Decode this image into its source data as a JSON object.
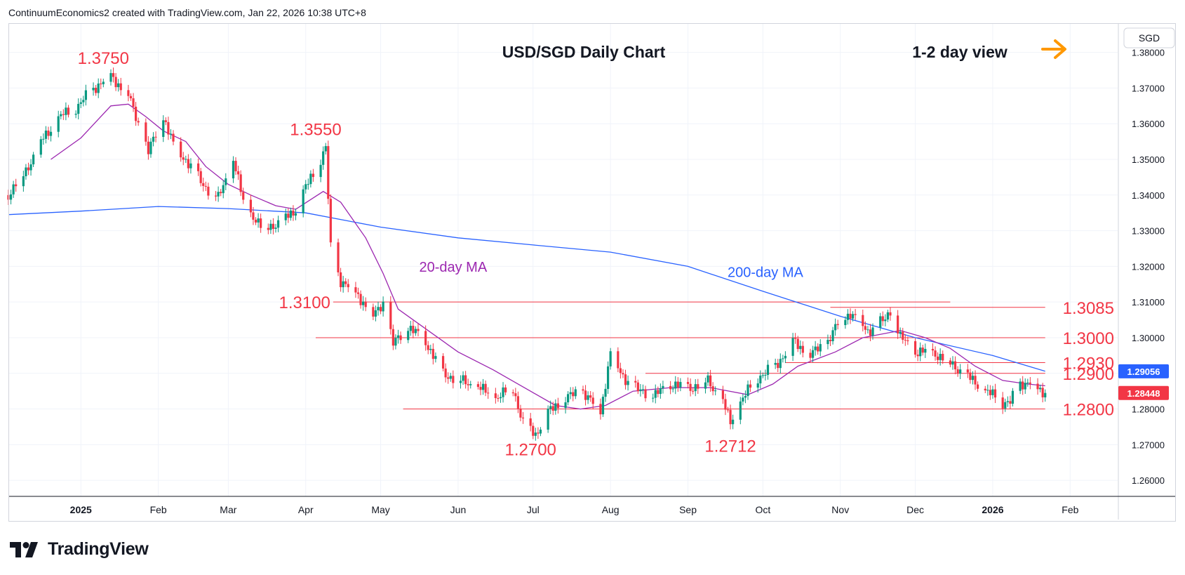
{
  "header": {
    "attribution": "ContinuumEconomics2 created with TradingView.com, Jan 22, 2026 10:38 UTC+8"
  },
  "footer": {
    "brand": "TradingView"
  },
  "colors": {
    "up": "#089981",
    "down": "#f23645",
    "ma20": "#9c27b0",
    "ma200": "#2962ff",
    "level_line": "#f23645",
    "annotation_red": "#f23645",
    "arrow": "#ff9800",
    "grid": "#f0f3fa",
    "last_price_bg": "#f23645",
    "ma200_label_bg": "#2962ff"
  },
  "chart_data": {
    "type": "candlestick",
    "title": "USD/SGD Daily Chart",
    "view_label": "1-2 day view",
    "view_arrow": "right-arrow-icon",
    "currency": "SGD",
    "ylim": [
      1.2555,
      1.388
    ],
    "y_ticks": [
      "1.38000",
      "1.37000",
      "1.36000",
      "1.35000",
      "1.34000",
      "1.33000",
      "1.32000",
      "1.31000",
      "1.30000",
      "1.29000",
      "1.28000",
      "1.27000",
      "1.26000"
    ],
    "x_range": [
      "2024-12-03",
      "2026-02-20"
    ],
    "x_ticks": [
      {
        "label": "2025",
        "date": "2025-01-01",
        "bold": true
      },
      {
        "label": "Feb",
        "date": "2025-02-01"
      },
      {
        "label": "Mar",
        "date": "2025-03-01"
      },
      {
        "label": "Apr",
        "date": "2025-04-01"
      },
      {
        "label": "May",
        "date": "2025-05-01"
      },
      {
        "label": "Jun",
        "date": "2025-06-01"
      },
      {
        "label": "Jul",
        "date": "2025-07-01"
      },
      {
        "label": "Aug",
        "date": "2025-08-01"
      },
      {
        "label": "Sep",
        "date": "2025-09-01"
      },
      {
        "label": "Oct",
        "date": "2025-10-01"
      },
      {
        "label": "Nov",
        "date": "2025-11-01"
      },
      {
        "label": "Dec",
        "date": "2025-12-01"
      },
      {
        "label": "2026",
        "date": "2026-01-01",
        "bold": true
      },
      {
        "label": "Feb",
        "date": "2026-02-01"
      }
    ],
    "price_path": [
      [
        "2024-12-03",
        1.34
      ],
      [
        "2024-12-10",
        1.347
      ],
      [
        "2024-12-17",
        1.356
      ],
      [
        "2024-12-24",
        1.362
      ],
      [
        "2024-12-31",
        1.365
      ],
      [
        "2025-01-06",
        1.37
      ],
      [
        "2025-01-13",
        1.3735
      ],
      [
        "2025-01-20",
        1.368
      ],
      [
        "2025-01-24",
        1.36
      ],
      [
        "2025-01-28",
        1.352
      ],
      [
        "2025-02-03",
        1.362
      ],
      [
        "2025-02-07",
        1.354
      ],
      [
        "2025-02-12",
        1.35
      ],
      [
        "2025-02-19",
        1.343
      ],
      [
        "2025-02-25",
        1.339
      ],
      [
        "2025-03-03",
        1.35
      ],
      [
        "2025-03-07",
        1.338
      ],
      [
        "2025-03-14",
        1.331
      ],
      [
        "2025-03-21",
        1.332
      ],
      [
        "2025-03-28",
        1.336
      ],
      [
        "2025-04-01",
        1.342
      ],
      [
        "2025-04-07",
        1.35
      ],
      [
        "2025-04-09",
        1.353
      ],
      [
        "2025-04-11",
        1.325
      ],
      [
        "2025-04-15",
        1.316
      ],
      [
        "2025-04-22",
        1.312
      ],
      [
        "2025-04-28",
        1.306
      ],
      [
        "2025-05-02",
        1.31
      ],
      [
        "2025-05-06",
        1.298
      ],
      [
        "2025-05-12",
        1.303
      ],
      [
        "2025-05-19",
        1.299
      ],
      [
        "2025-05-26",
        1.29
      ],
      [
        "2025-06-02",
        1.288
      ],
      [
        "2025-06-09",
        1.286
      ],
      [
        "2025-06-16",
        1.283
      ],
      [
        "2025-06-23",
        1.286
      ],
      [
        "2025-06-27",
        1.276
      ],
      [
        "2025-07-02",
        1.273
      ],
      [
        "2025-07-07",
        1.279
      ],
      [
        "2025-07-14",
        1.283
      ],
      [
        "2025-07-21",
        1.285
      ],
      [
        "2025-07-28",
        1.279
      ],
      [
        "2025-08-01",
        1.296
      ],
      [
        "2025-08-05",
        1.29
      ],
      [
        "2025-08-12",
        1.285
      ],
      [
        "2025-08-19",
        1.284
      ],
      [
        "2025-08-26",
        1.287
      ],
      [
        "2025-09-02",
        1.286
      ],
      [
        "2025-09-09",
        1.288
      ],
      [
        "2025-09-15",
        1.282
      ],
      [
        "2025-09-18",
        1.276
      ],
      [
        "2025-09-22",
        1.282
      ],
      [
        "2025-09-29",
        1.289
      ],
      [
        "2025-10-06",
        1.292
      ],
      [
        "2025-10-13",
        1.299
      ],
      [
        "2025-10-20",
        1.295
      ],
      [
        "2025-10-27",
        1.299
      ],
      [
        "2025-11-01",
        1.305
      ],
      [
        "2025-11-05",
        1.307
      ],
      [
        "2025-11-12",
        1.302
      ],
      [
        "2025-11-19",
        1.305
      ],
      [
        "2025-11-21",
        1.308
      ],
      [
        "2025-11-25",
        1.3
      ],
      [
        "2025-12-01",
        1.296
      ],
      [
        "2025-12-08",
        1.296
      ],
      [
        "2025-12-15",
        1.293
      ],
      [
        "2025-12-22",
        1.289
      ],
      [
        "2025-12-29",
        1.285
      ],
      [
        "2026-01-05",
        1.282
      ],
      [
        "2026-01-08",
        1.282
      ],
      [
        "2026-01-12",
        1.287
      ],
      [
        "2026-01-16",
        1.288
      ],
      [
        "2026-01-19",
        1.285
      ],
      [
        "2026-01-22",
        1.2845
      ]
    ],
    "ma20_path": [
      [
        "2024-12-20",
        1.35
      ],
      [
        "2025-01-01",
        1.356
      ],
      [
        "2025-01-13",
        1.365
      ],
      [
        "2025-01-20",
        1.3655
      ],
      [
        "2025-01-27",
        1.362
      ],
      [
        "2025-02-03",
        1.358
      ],
      [
        "2025-02-12",
        1.355
      ],
      [
        "2025-02-20",
        1.348
      ],
      [
        "2025-03-01",
        1.343
      ],
      [
        "2025-03-10",
        1.34
      ],
      [
        "2025-03-20",
        1.337
      ],
      [
        "2025-03-28",
        1.336
      ],
      [
        "2025-04-08",
        1.341
      ],
      [
        "2025-04-15",
        1.338
      ],
      [
        "2025-04-25",
        1.328
      ],
      [
        "2025-05-02",
        1.318
      ],
      [
        "2025-05-08",
        1.308
      ],
      [
        "2025-05-20",
        1.302
      ],
      [
        "2025-06-01",
        1.296
      ],
      [
        "2025-06-15",
        1.291
      ],
      [
        "2025-06-30",
        1.285
      ],
      [
        "2025-07-10",
        1.281
      ],
      [
        "2025-07-20",
        1.28
      ],
      [
        "2025-07-30",
        1.281
      ],
      [
        "2025-08-10",
        1.285
      ],
      [
        "2025-08-25",
        1.286
      ],
      [
        "2025-09-10",
        1.286
      ],
      [
        "2025-09-25",
        1.284
      ],
      [
        "2025-10-05",
        1.287
      ],
      [
        "2025-10-15",
        1.292
      ],
      [
        "2025-10-30",
        1.296
      ],
      [
        "2025-11-10",
        1.3
      ],
      [
        "2025-11-25",
        1.302
      ],
      [
        "2025-12-05",
        1.3
      ],
      [
        "2025-12-15",
        1.297
      ],
      [
        "2025-12-25",
        1.292
      ],
      [
        "2026-01-05",
        1.288
      ],
      [
        "2026-01-15",
        1.287
      ],
      [
        "2026-01-22",
        1.2865
      ]
    ],
    "ma200_path": [
      [
        "2024-12-03",
        1.3345
      ],
      [
        "2025-01-01",
        1.3355
      ],
      [
        "2025-02-01",
        1.3368
      ],
      [
        "2025-03-01",
        1.3362
      ],
      [
        "2025-04-01",
        1.335
      ],
      [
        "2025-05-01",
        1.331
      ],
      [
        "2025-06-01",
        1.328
      ],
      [
        "2025-07-01",
        1.326
      ],
      [
        "2025-08-01",
        1.324
      ],
      [
        "2025-09-01",
        1.32
      ],
      [
        "2025-10-01",
        1.313
      ],
      [
        "2025-11-01",
        1.306
      ],
      [
        "2025-12-01",
        1.3
      ],
      [
        "2026-01-01",
        1.295
      ],
      [
        "2026-01-22",
        1.2906
      ]
    ],
    "levels": [
      {
        "label": "1.3100",
        "price": 1.31,
        "from": "2025-04-12",
        "to": "2025-12-15",
        "label_side": "left"
      },
      {
        "label": "1.3085",
        "price": 1.3085,
        "from": "2025-10-28",
        "to": "2026-01-22",
        "label_side": "right"
      },
      {
        "label": "1.3000",
        "price": 1.3,
        "from": "2025-04-05",
        "to": "2026-01-22",
        "label_side": "right"
      },
      {
        "label": "1.2930",
        "price": 1.293,
        "from": "2025-10-10",
        "to": "2026-01-22",
        "label_side": "right"
      },
      {
        "label": "1.2900",
        "price": 1.29,
        "from": "2025-08-15",
        "to": "2026-01-22",
        "label_side": "right"
      },
      {
        "label": "1.2800",
        "price": 1.28,
        "from": "2025-05-10",
        "to": "2026-01-22",
        "label_side": "right"
      }
    ],
    "annotations": [
      {
        "text": "1.3750",
        "date": "2025-01-10",
        "price": 1.3768,
        "color": "red"
      },
      {
        "text": "1.3550",
        "date": "2025-04-05",
        "price": 1.3568,
        "color": "red"
      },
      {
        "text": "1.2700",
        "date": "2025-06-30",
        "price": 1.267,
        "color": "red"
      },
      {
        "text": "1.2712",
        "date": "2025-09-18",
        "price": 1.268,
        "color": "red"
      },
      {
        "text": "20-day MA",
        "date": "2025-05-30",
        "price": 1.3185,
        "color": "purple"
      },
      {
        "text": "200-day MA",
        "date": "2025-10-02",
        "price": 1.317,
        "color": "blue"
      }
    ],
    "price_tags": [
      {
        "label": "1.29056",
        "price": 1.29056,
        "kind": "ma200"
      },
      {
        "label": "1.28448",
        "price": 1.28448,
        "kind": "last"
      }
    ],
    "last_price": 1.28448
  }
}
